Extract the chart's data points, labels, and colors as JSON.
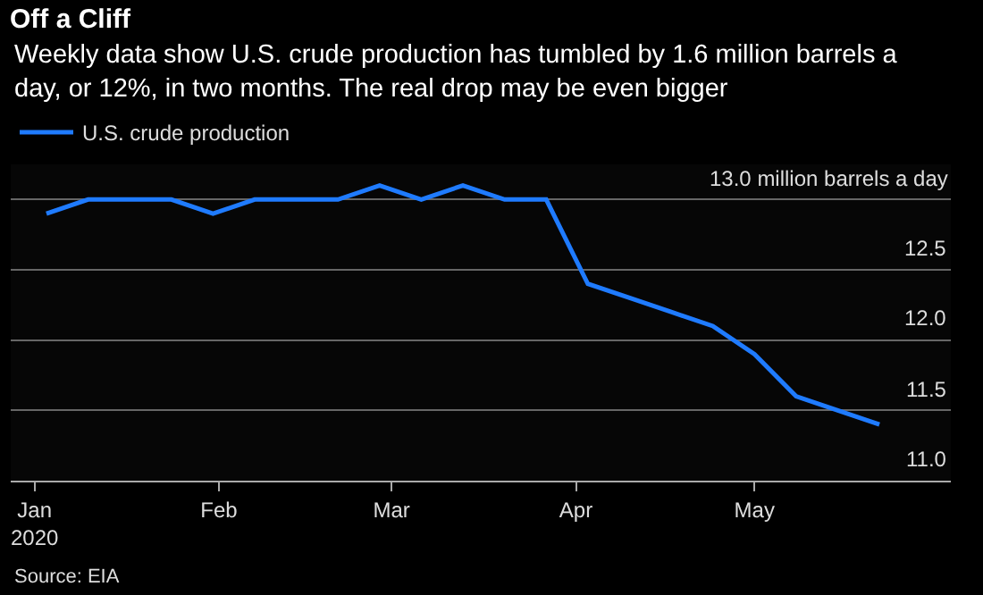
{
  "chart_data": {
    "type": "line",
    "title": "Off a Cliff",
    "subtitle": "Weekly data show U.S. crude production has tumbled by 1.6 million barrels a day, or 12%, in two months. The real drop may be even bigger",
    "x": [
      "2020-01-03",
      "2020-01-10",
      "2020-01-17",
      "2020-01-24",
      "2020-01-31",
      "2020-02-07",
      "2020-02-14",
      "2020-02-21",
      "2020-02-28",
      "2020-03-06",
      "2020-03-13",
      "2020-03-20",
      "2020-03-27",
      "2020-04-03",
      "2020-04-10",
      "2020-04-17",
      "2020-04-24",
      "2020-05-01",
      "2020-05-08",
      "2020-05-15",
      "2020-05-22"
    ],
    "series": [
      {
        "name": "U.S. crude production",
        "color": "#1f7bff",
        "values": [
          12.9,
          13.0,
          13.0,
          13.0,
          12.9,
          13.0,
          13.0,
          13.0,
          13.1,
          13.0,
          13.1,
          13.0,
          13.0,
          12.4,
          12.3,
          12.2,
          12.1,
          11.9,
          11.6,
          11.5,
          11.4
        ]
      }
    ],
    "xlim": [
      "2019-12-28",
      "2020-06-03"
    ],
    "xticks": [
      {
        "value": "2020-01-01",
        "label": "Jan\n2020"
      },
      {
        "value": "2020-02-01",
        "label": "Feb"
      },
      {
        "value": "2020-03-01",
        "label": "Mar"
      },
      {
        "value": "2020-04-01",
        "label": "Apr"
      },
      {
        "value": "2020-05-01",
        "label": "May"
      }
    ],
    "ylim": [
      11.0,
      13.25
    ],
    "yticks": [
      {
        "value": 11.0,
        "label": "11.0"
      },
      {
        "value": 11.5,
        "label": "11.5"
      },
      {
        "value": 12.0,
        "label": "12.0"
      },
      {
        "value": 12.5,
        "label": "12.5"
      },
      {
        "value": 13.0,
        "label": "13.0 million barrels a day"
      }
    ],
    "grid": "y",
    "legend": "top left",
    "marker": "none",
    "line_style": "solid",
    "annotations": [
      "Source: EIA"
    ]
  }
}
